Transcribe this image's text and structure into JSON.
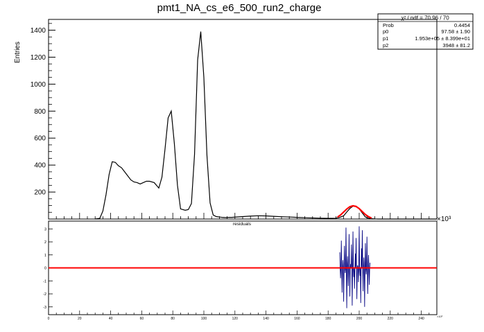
{
  "title": "pmt1_NA_cs_e6_500_run2_charge",
  "stats_box": {
    "header": "χ² / ndf = 70.96 / 70",
    "rows": [
      {
        "name": "Prob",
        "value": "0.4454"
      },
      {
        "name": "p0",
        "value": "97.58 ± 1.90"
      },
      {
        "name": "p1",
        "value": "1.953e+05 ± 8.399e+01"
      },
      {
        "name": "p2",
        "value": "3948 ± 81.2"
      }
    ]
  },
  "chart_data": [
    {
      "type": "line",
      "subtype": "histogram_with_gaussian_fit",
      "title": "pmt1_NA_cs_e6_500_run2_charge",
      "xlabel": "",
      "ylabel": "Entries",
      "x_multiplier_label": "×10³",
      "xlim": [
        0,
        250
      ],
      "ylim": [
        0,
        1480
      ],
      "yticks": [
        200,
        400,
        600,
        800,
        1000,
        1200,
        1400
      ],
      "grid": false,
      "series": [
        {
          "color": "#000000",
          "x": [
            30,
            33,
            35,
            37,
            39,
            41,
            43,
            45,
            47,
            49,
            51,
            53,
            55,
            57,
            59,
            61,
            63,
            65,
            68,
            71,
            73,
            75,
            77,
            79,
            81,
            83,
            85,
            88,
            90,
            92,
            94,
            96,
            98,
            100,
            102,
            104,
            106,
            108,
            110,
            112,
            114,
            116,
            118,
            120,
            125,
            130,
            135,
            140,
            145,
            150,
            155,
            160,
            165,
            170,
            175,
            180,
            185,
            187,
            190,
            192,
            194,
            196,
            198,
            200,
            202,
            204,
            206,
            208,
            210,
            212,
            214,
            216,
            218,
            220,
            225,
            230,
            235,
            240,
            245,
            250
          ],
          "y": [
            0,
            5,
            60,
            180,
            330,
            425,
            420,
            395,
            380,
            350,
            320,
            290,
            275,
            270,
            260,
            270,
            280,
            280,
            270,
            230,
            310,
            520,
            750,
            800,
            560,
            250,
            75,
            65,
            70,
            115,
            480,
            1180,
            1390,
            1050,
            470,
            120,
            30,
            18,
            15,
            12,
            11,
            12,
            12,
            14,
            18,
            22,
            24,
            23,
            20,
            17,
            15,
            12,
            10,
            8,
            6,
            5,
            6,
            10,
            24,
            52,
            78,
            95,
            96,
            76,
            45,
            15,
            6,
            3,
            1,
            0,
            0,
            0,
            0,
            0,
            0,
            0,
            0,
            0,
            0,
            0
          ]
        },
        {
          "name": "fit",
          "color": "#ff0000",
          "x": [
            186,
            188,
            190,
            192,
            194,
            196,
            198,
            200,
            202,
            204,
            206,
            208
          ],
          "y": [
            14,
            30,
            52,
            74,
            91,
            98,
            93,
            77,
            55,
            33,
            17,
            7
          ]
        }
      ]
    },
    {
      "type": "line",
      "title": "residuals",
      "xlabel": "",
      "ylabel": "",
      "x_multiplier_label": "×10³",
      "xlim": [
        0,
        250
      ],
      "ylim": [
        -3.6,
        3.6
      ],
      "yticks": [
        -3,
        -2,
        -1,
        0,
        1,
        2,
        3
      ],
      "xticks": [
        0,
        20,
        40,
        60,
        80,
        100,
        120,
        140,
        160,
        180,
        200,
        220,
        240
      ],
      "grid": false,
      "series": [
        {
          "color": "#000080",
          "x": [
            187.5,
            188,
            188.5,
            189,
            189.5,
            190,
            190.5,
            191,
            191.5,
            192,
            192.5,
            193,
            193.5,
            194,
            194.5,
            195,
            195.5,
            196,
            196.5,
            197,
            197.5,
            198,
            198.5,
            199,
            199.5,
            200,
            200.5,
            201,
            201.5,
            202,
            202.5,
            203,
            203.5,
            204,
            204.5,
            205,
            205.5,
            206,
            206.5,
            207
          ],
          "y": [
            1.2,
            -0.8,
            2.1,
            -1.9,
            0.6,
            -2.6,
            1.7,
            -0.4,
            3.1,
            -3.1,
            0.9,
            -1.4,
            2.6,
            -2.2,
            0.3,
            1.8,
            -2.9,
            2.8,
            -0.7,
            -1.6,
            1.1,
            2.3,
            -2.4,
            0.2,
            -1.1,
            3.2,
            -0.6,
            -2.7,
            1.5,
            2.9,
            -1.8,
            0.8,
            -3.0,
            1.9,
            -0.5,
            2.4,
            -2.0,
            1.0,
            -1.3,
            0.4
          ]
        },
        {
          "name": "zero",
          "color": "#ff0000",
          "x": [
            0,
            250
          ],
          "y": [
            0,
            0
          ]
        }
      ]
    }
  ]
}
